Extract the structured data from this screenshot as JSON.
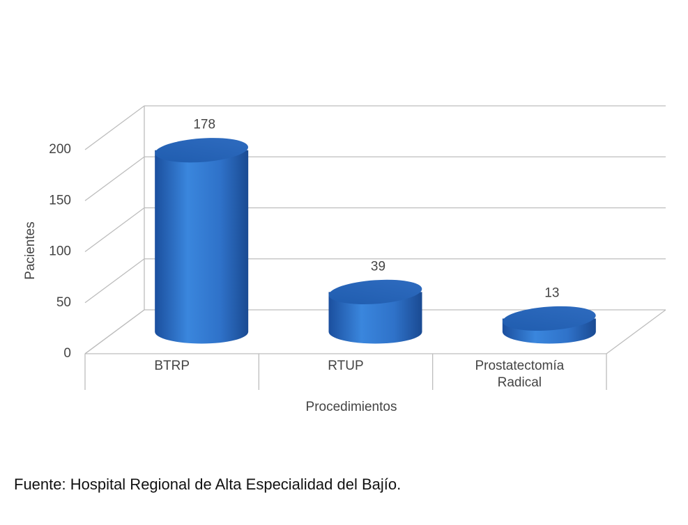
{
  "chart_data": {
    "type": "bar3d",
    "categories": [
      "BTRP",
      "RTUP",
      "Prostatectomía Radical"
    ],
    "values": [
      178,
      39,
      13
    ],
    "color": "#2f72c9",
    "ylim": [
      0,
      200
    ],
    "yticks": [
      0,
      50,
      100,
      150,
      200
    ],
    "ylabel": "Pacientes",
    "xlabel": "Procedimientos",
    "grid": true
  },
  "footnote": "Fuente: Hospital Regional de Alta Especialidad del Bajío."
}
